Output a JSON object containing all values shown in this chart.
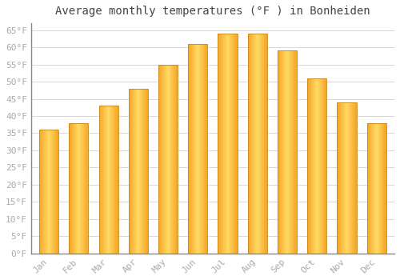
{
  "title": "Average monthly temperatures (°F ) in Bonheiden",
  "months": [
    "Jan",
    "Feb",
    "Mar",
    "Apr",
    "May",
    "Jun",
    "Jul",
    "Aug",
    "Sep",
    "Oct",
    "Nov",
    "Dec"
  ],
  "values": [
    36,
    38,
    43,
    48,
    55,
    61,
    64,
    64,
    59,
    51,
    44,
    38
  ],
  "bar_color_center": "#FFD966",
  "bar_color_edge": "#F5A623",
  "bar_edge_color": "#C8861A",
  "ylim": [
    0,
    67
  ],
  "yticks": [
    0,
    5,
    10,
    15,
    20,
    25,
    30,
    35,
    40,
    45,
    50,
    55,
    60,
    65
  ],
  "background_color": "#ffffff",
  "grid_color": "#d8d8d8",
  "title_fontsize": 10,
  "tick_fontsize": 8,
  "font_family": "monospace",
  "tick_color": "#aaaaaa",
  "title_color": "#444444"
}
